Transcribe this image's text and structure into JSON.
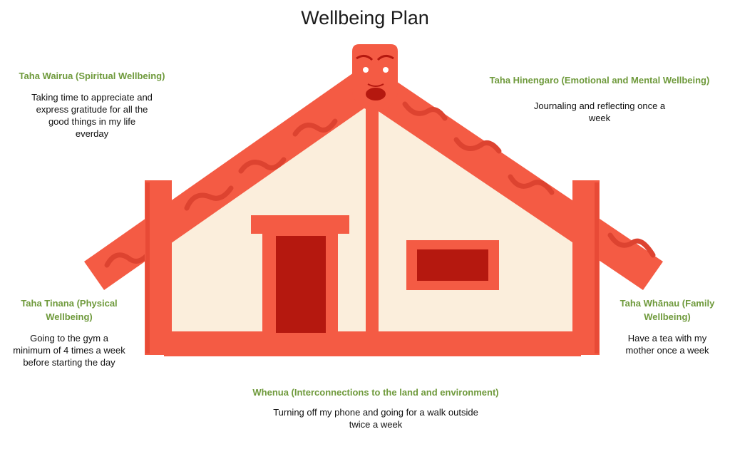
{
  "title": "Wellbeing Plan",
  "colors": {
    "heading_green": "#6f9a3c",
    "house_red": "#f45b44",
    "house_cream": "#fbeedc",
    "door_dark": "#b5180f",
    "carving_dark": "#dd4330"
  },
  "icons": [
    "wharenui-house-icon",
    "tekoteko-face-icon"
  ],
  "sections": {
    "wairua": {
      "heading": "Taha Wairua (Spiritual Wellbeing)",
      "text": "Taking time to appreciate and express gratitude for all the good things in my life everday"
    },
    "hinengaro": {
      "heading": "Taha Hinengaro (Emotional and Mental Wellbeing)",
      "text": "Journaling and reflecting once a week"
    },
    "tinana": {
      "heading": "Taha Tinana (Physical Wellbeing)",
      "text": "Going to the gym a minimum of 4 times a week before starting the day"
    },
    "whanau": {
      "heading": "Taha Whānau (Family Wellbeing)",
      "text": "Have a tea with my mother once a week"
    },
    "whenua": {
      "heading": "Whenua (Interconnections to the land and environment)",
      "text": "Turning off my phone and going for a walk outside twice a week"
    }
  }
}
